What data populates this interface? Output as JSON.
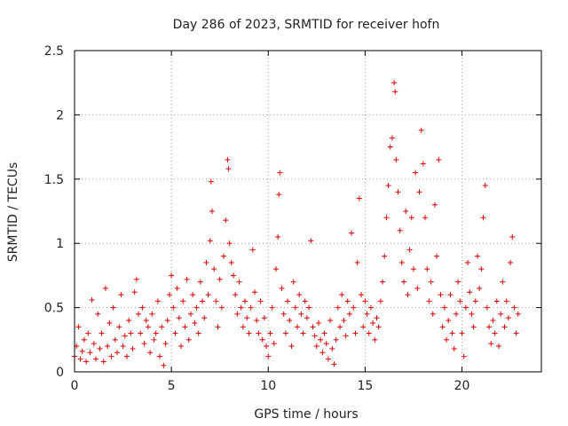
{
  "chart_data": {
    "type": "scatter",
    "title": "Day 286 of 2023, SRMTID for receiver hofn",
    "xlabel": "GPS time / hours",
    "ylabel": "SRMTID / TECUs",
    "xlim": [
      0,
      24.1
    ],
    "ylim": [
      0,
      2.5
    ],
    "xticks": [
      0,
      5,
      10,
      15,
      20
    ],
    "xtick_labels": [
      "0",
      "5",
      "10",
      "15",
      "20"
    ],
    "yticks": [
      0,
      0.5,
      1,
      1.5,
      2,
      2.5
    ],
    "ytick_labels": [
      "0",
      "0.5",
      "1",
      "1.5",
      "2",
      "2.5"
    ],
    "grid": true,
    "marker": "+",
    "marker_color": "#e00000",
    "series": [
      {
        "name": "SRMTID",
        "points": [
          [
            0.0,
            0.12
          ],
          [
            0.1,
            0.2
          ],
          [
            0.2,
            0.35
          ],
          [
            0.3,
            0.1
          ],
          [
            0.4,
            0.16
          ],
          [
            0.5,
            0.25
          ],
          [
            0.6,
            0.08
          ],
          [
            0.7,
            0.3
          ],
          [
            0.8,
            0.15
          ],
          [
            0.9,
            0.56
          ],
          [
            1.0,
            0.22
          ],
          [
            1.1,
            0.1
          ],
          [
            1.2,
            0.45
          ],
          [
            1.3,
            0.18
          ],
          [
            1.4,
            0.3
          ],
          [
            1.5,
            0.08
          ],
          [
            1.6,
            0.65
          ],
          [
            1.7,
            0.2
          ],
          [
            1.8,
            0.38
          ],
          [
            1.9,
            0.12
          ],
          [
            2.0,
            0.5
          ],
          [
            2.1,
            0.25
          ],
          [
            2.2,
            0.15
          ],
          [
            2.3,
            0.35
          ],
          [
            2.4,
            0.6
          ],
          [
            2.5,
            0.2
          ],
          [
            2.6,
            0.28
          ],
          [
            2.7,
            0.12
          ],
          [
            2.8,
            0.4
          ],
          [
            2.9,
            0.3
          ],
          [
            3.0,
            0.18
          ],
          [
            3.1,
            0.62
          ],
          [
            3.2,
            0.72
          ],
          [
            3.3,
            0.45
          ],
          [
            3.4,
            0.3
          ],
          [
            3.5,
            0.5
          ],
          [
            3.6,
            0.22
          ],
          [
            3.7,
            0.4
          ],
          [
            3.8,
            0.35
          ],
          [
            3.9,
            0.15
          ],
          [
            4.0,
            0.45
          ],
          [
            4.1,
            0.25
          ],
          [
            4.2,
            0.3
          ],
          [
            4.3,
            0.55
          ],
          [
            4.4,
            0.12
          ],
          [
            4.5,
            0.35
          ],
          [
            4.6,
            0.05
          ],
          [
            4.7,
            0.22
          ],
          [
            4.8,
            0.4
          ],
          [
            4.9,
            0.6
          ],
          [
            5.0,
            0.75
          ],
          [
            5.1,
            0.5
          ],
          [
            5.2,
            0.3
          ],
          [
            5.3,
            0.65
          ],
          [
            5.4,
            0.42
          ],
          [
            5.5,
            0.2
          ],
          [
            5.6,
            0.55
          ],
          [
            5.7,
            0.35
          ],
          [
            5.8,
            0.72
          ],
          [
            5.9,
            0.25
          ],
          [
            6.0,
            0.45
          ],
          [
            6.1,
            0.6
          ],
          [
            6.2,
            0.38
          ],
          [
            6.3,
            0.5
          ],
          [
            6.4,
            0.3
          ],
          [
            6.5,
            0.7
          ],
          [
            6.6,
            0.55
          ],
          [
            6.7,
            0.42
          ],
          [
            6.8,
            0.85
          ],
          [
            6.9,
            0.6
          ],
          [
            7.0,
            1.02
          ],
          [
            7.05,
            1.48
          ],
          [
            7.1,
            1.25
          ],
          [
            7.2,
            0.8
          ],
          [
            7.3,
            0.55
          ],
          [
            7.4,
            0.35
          ],
          [
            7.5,
            0.72
          ],
          [
            7.6,
            0.5
          ],
          [
            7.7,
            0.9
          ],
          [
            7.8,
            1.18
          ],
          [
            7.9,
            1.65
          ],
          [
            7.95,
            1.58
          ],
          [
            8.0,
            1.0
          ],
          [
            8.1,
            0.85
          ],
          [
            8.2,
            0.75
          ],
          [
            8.3,
            0.6
          ],
          [
            8.4,
            0.45
          ],
          [
            8.5,
            0.7
          ],
          [
            8.6,
            0.5
          ],
          [
            8.7,
            0.35
          ],
          [
            8.8,
            0.55
          ],
          [
            8.9,
            0.42
          ],
          [
            9.0,
            0.3
          ],
          [
            9.1,
            0.5
          ],
          [
            9.2,
            0.95
          ],
          [
            9.3,
            0.62
          ],
          [
            9.4,
            0.4
          ],
          [
            9.5,
            0.3
          ],
          [
            9.6,
            0.55
          ],
          [
            9.7,
            0.25
          ],
          [
            9.8,
            0.42
          ],
          [
            9.9,
            0.2
          ],
          [
            10.0,
            0.12
          ],
          [
            10.1,
            0.3
          ],
          [
            10.2,
            0.5
          ],
          [
            10.3,
            0.22
          ],
          [
            10.4,
            0.8
          ],
          [
            10.5,
            1.05
          ],
          [
            10.55,
            1.38
          ],
          [
            10.6,
            1.55
          ],
          [
            10.7,
            0.65
          ],
          [
            10.8,
            0.45
          ],
          [
            10.9,
            0.3
          ],
          [
            11.0,
            0.55
          ],
          [
            11.1,
            0.4
          ],
          [
            11.2,
            0.2
          ],
          [
            11.3,
            0.7
          ],
          [
            11.4,
            0.5
          ],
          [
            11.5,
            0.35
          ],
          [
            11.6,
            0.6
          ],
          [
            11.7,
            0.45
          ],
          [
            11.8,
            0.3
          ],
          [
            11.9,
            0.55
          ],
          [
            12.0,
            0.42
          ],
          [
            12.1,
            0.5
          ],
          [
            12.2,
            1.02
          ],
          [
            12.3,
            0.35
          ],
          [
            12.4,
            0.28
          ],
          [
            12.5,
            0.2
          ],
          [
            12.6,
            0.38
          ],
          [
            12.7,
            0.25
          ],
          [
            12.8,
            0.15
          ],
          [
            12.9,
            0.3
          ],
          [
            13.0,
            0.22
          ],
          [
            13.1,
            0.1
          ],
          [
            13.2,
            0.4
          ],
          [
            13.3,
            0.18
          ],
          [
            13.4,
            0.06
          ],
          [
            13.5,
            0.25
          ],
          [
            13.6,
            0.5
          ],
          [
            13.7,
            0.35
          ],
          [
            13.8,
            0.6
          ],
          [
            13.9,
            0.4
          ],
          [
            14.0,
            0.28
          ],
          [
            14.1,
            0.55
          ],
          [
            14.2,
            0.45
          ],
          [
            14.3,
            1.08
          ],
          [
            14.4,
            0.5
          ],
          [
            14.5,
            0.3
          ],
          [
            14.6,
            0.85
          ],
          [
            14.7,
            1.35
          ],
          [
            14.8,
            0.6
          ],
          [
            14.9,
            0.35
          ],
          [
            15.0,
            0.55
          ],
          [
            15.1,
            0.45
          ],
          [
            15.2,
            0.3
          ],
          [
            15.3,
            0.5
          ],
          [
            15.4,
            0.38
          ],
          [
            15.5,
            0.25
          ],
          [
            15.6,
            0.42
          ],
          [
            15.7,
            0.35
          ],
          [
            15.8,
            0.55
          ],
          [
            15.9,
            0.7
          ],
          [
            16.0,
            0.9
          ],
          [
            16.1,
            1.2
          ],
          [
            16.2,
            1.45
          ],
          [
            16.3,
            1.75
          ],
          [
            16.4,
            1.82
          ],
          [
            16.5,
            2.25
          ],
          [
            16.55,
            2.18
          ],
          [
            16.6,
            1.65
          ],
          [
            16.7,
            1.4
          ],
          [
            16.8,
            1.1
          ],
          [
            16.9,
            0.85
          ],
          [
            17.0,
            0.7
          ],
          [
            17.1,
            1.25
          ],
          [
            17.2,
            0.6
          ],
          [
            17.3,
            0.95
          ],
          [
            17.4,
            1.2
          ],
          [
            17.5,
            0.8
          ],
          [
            17.6,
            1.55
          ],
          [
            17.7,
            0.65
          ],
          [
            17.8,
            1.4
          ],
          [
            17.9,
            1.88
          ],
          [
            18.0,
            1.62
          ],
          [
            18.1,
            1.2
          ],
          [
            18.2,
            0.8
          ],
          [
            18.3,
            0.55
          ],
          [
            18.4,
            0.7
          ],
          [
            18.5,
            0.45
          ],
          [
            18.6,
            1.3
          ],
          [
            18.7,
            0.9
          ],
          [
            18.8,
            1.65
          ],
          [
            18.9,
            0.6
          ],
          [
            19.0,
            0.35
          ],
          [
            19.1,
            0.5
          ],
          [
            19.2,
            0.25
          ],
          [
            19.3,
            0.4
          ],
          [
            19.4,
            0.6
          ],
          [
            19.5,
            0.3
          ],
          [
            19.6,
            0.18
          ],
          [
            19.7,
            0.45
          ],
          [
            19.8,
            0.7
          ],
          [
            19.9,
            0.55
          ],
          [
            20.0,
            0.3
          ],
          [
            20.1,
            0.12
          ],
          [
            20.2,
            0.5
          ],
          [
            20.3,
            0.85
          ],
          [
            20.4,
            0.62
          ],
          [
            20.5,
            0.45
          ],
          [
            20.6,
            0.35
          ],
          [
            20.7,
            0.55
          ],
          [
            20.8,
            0.9
          ],
          [
            20.9,
            0.65
          ],
          [
            21.0,
            0.8
          ],
          [
            21.1,
            1.2
          ],
          [
            21.2,
            1.45
          ],
          [
            21.3,
            0.5
          ],
          [
            21.4,
            0.35
          ],
          [
            21.5,
            0.22
          ],
          [
            21.6,
            0.4
          ],
          [
            21.7,
            0.3
          ],
          [
            21.8,
            0.55
          ],
          [
            21.9,
            0.2
          ],
          [
            22.0,
            0.45
          ],
          [
            22.1,
            0.7
          ],
          [
            22.2,
            0.35
          ],
          [
            22.3,
            0.55
          ],
          [
            22.4,
            0.42
          ],
          [
            22.5,
            0.85
          ],
          [
            22.6,
            1.05
          ],
          [
            22.7,
            0.5
          ],
          [
            22.8,
            0.3
          ],
          [
            22.9,
            0.45
          ]
        ]
      }
    ]
  }
}
